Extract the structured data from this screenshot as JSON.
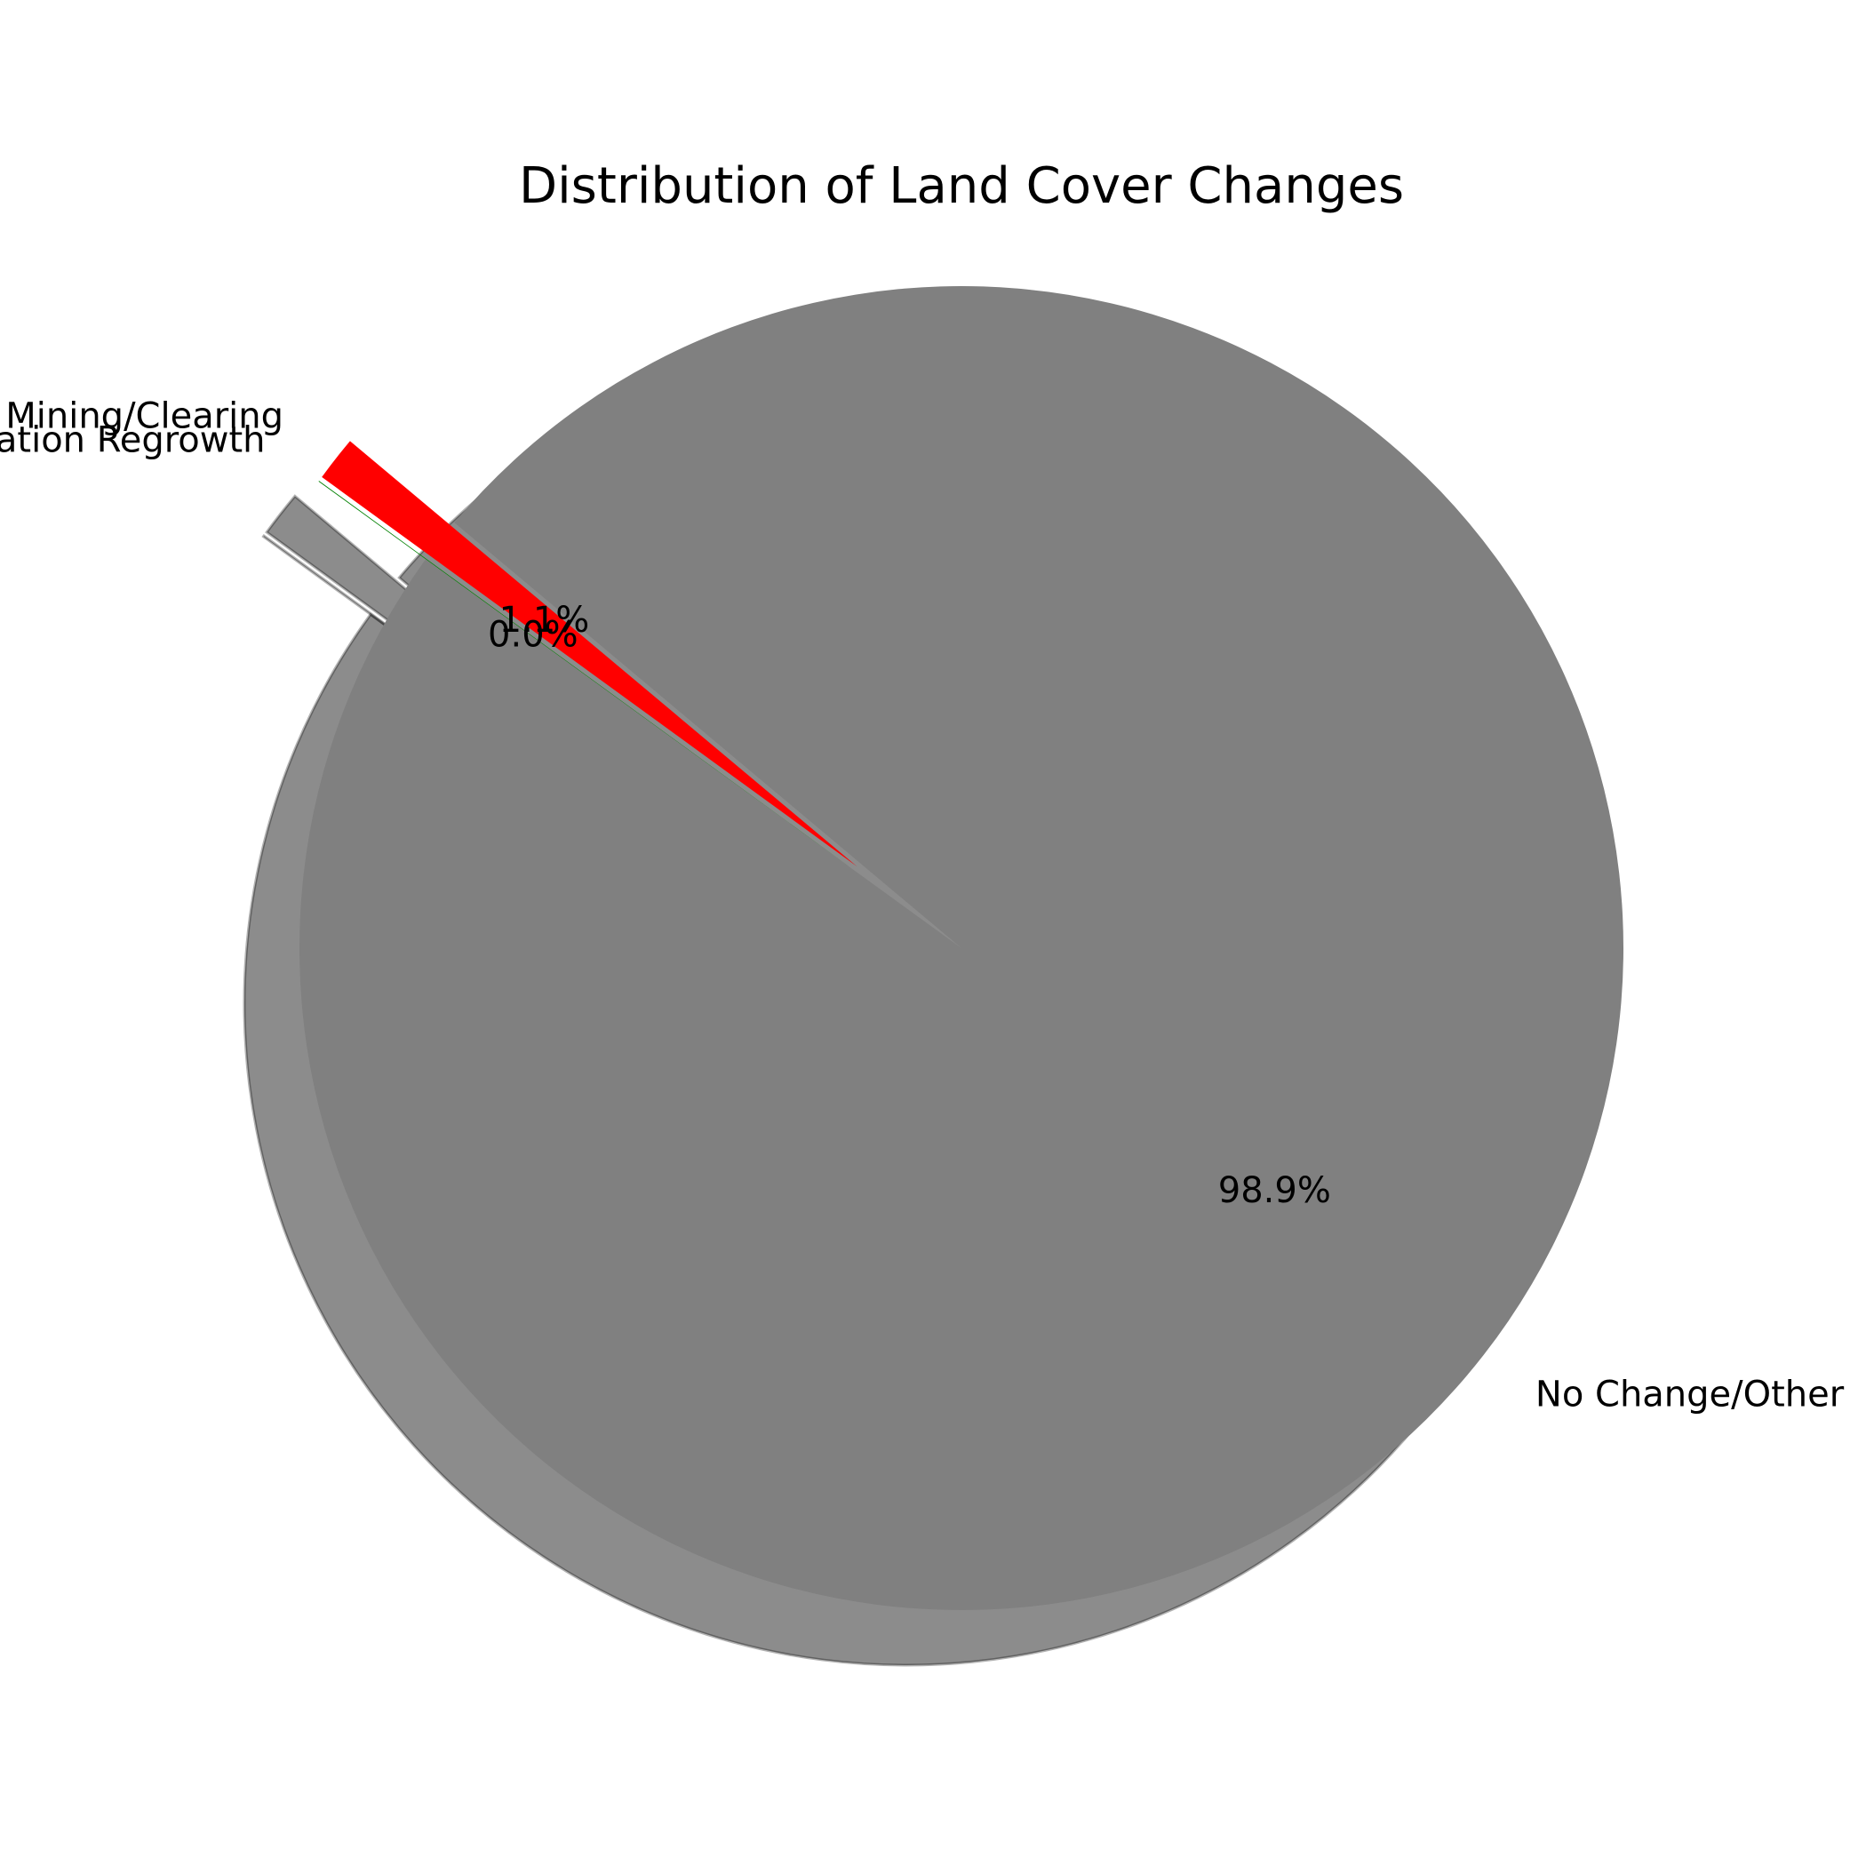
{
  "chart_data": {
    "type": "pie",
    "title": "Distribution of Land Cover Changes",
    "shadow": true,
    "slices": [
      {
        "label": "Mining/Clearing",
        "value": 1.1,
        "pct_label": "1.1%",
        "color": "#ff0000",
        "exploded": true
      },
      {
        "label": "Vegetation Regrowth",
        "value": 0.02,
        "pct_label": "0.0%",
        "color": "#008000",
        "exploded": true
      },
      {
        "label": "No Change/Other",
        "value": 98.88,
        "pct_label": "98.9%",
        "color": "#808080",
        "exploded": false
      }
    ],
    "legend": "none"
  }
}
